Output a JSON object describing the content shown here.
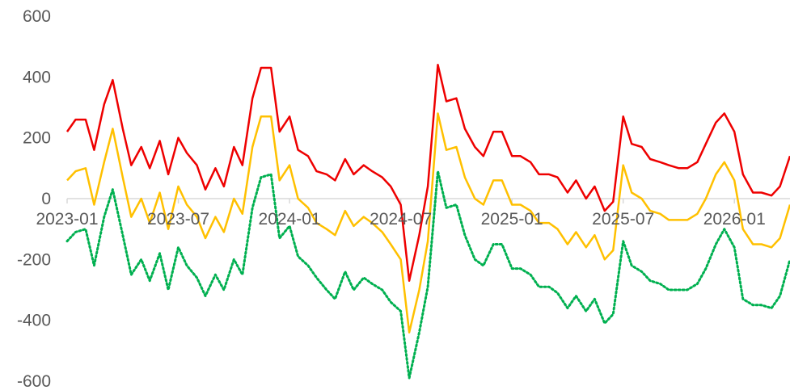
{
  "chart_data": {
    "type": "line",
    "title": "",
    "xlabel": "",
    "ylabel": "",
    "x_range": [
      "2023-01",
      "2026-04"
    ],
    "ylim": [
      -600,
      600
    ],
    "y_ticks": [
      {
        "value": 600,
        "label": "600"
      },
      {
        "value": 400,
        "label": "400"
      },
      {
        "value": 200,
        "label": "200"
      },
      {
        "value": 0,
        "label": "0"
      },
      {
        "value": -200,
        "label": "-200"
      },
      {
        "value": -400,
        "label": "-400"
      },
      {
        "value": -600,
        "label": "-600"
      }
    ],
    "x_ticks": [
      {
        "value": "2023-01",
        "label": "2023-01"
      },
      {
        "value": "2023-07",
        "label": "2023-07"
      },
      {
        "value": "2024-01",
        "label": "2024-01"
      },
      {
        "value": "2024-07",
        "label": "2024-07"
      },
      {
        "value": "2025-01",
        "label": "2025-01"
      },
      {
        "value": "2025-07",
        "label": "2025-07"
      },
      {
        "value": "2026-01",
        "label": "2026-01"
      }
    ],
    "grid": false,
    "legend": "none",
    "series": [
      {
        "color": "#ee0000",
        "style": "solid",
        "x": [
          "2023-01",
          "2023-01-15",
          "2023-02",
          "2023-02-15",
          "2023-03",
          "2023-03-15",
          "2023-04",
          "2023-04-15",
          "2023-05",
          "2023-05-15",
          "2023-06",
          "2023-06-15",
          "2023-07",
          "2023-07-15",
          "2023-08",
          "2023-08-15",
          "2023-09",
          "2023-09-15",
          "2023-10",
          "2023-10-15",
          "2023-11",
          "2023-11-15",
          "2023-12",
          "2023-12-15",
          "2024-01",
          "2024-01-15",
          "2024-02",
          "2024-02-15",
          "2024-03",
          "2024-03-15",
          "2024-04",
          "2024-04-15",
          "2024-05",
          "2024-05-15",
          "2024-06",
          "2024-06-15",
          "2024-07",
          "2024-07-15",
          "2024-08",
          "2024-08-15",
          "2024-09",
          "2024-09-15",
          "2024-10",
          "2024-10-15",
          "2024-11",
          "2024-11-15",
          "2024-12",
          "2024-12-15",
          "2025-01",
          "2025-01-15",
          "2025-02",
          "2025-02-15",
          "2025-03",
          "2025-03-15",
          "2025-04",
          "2025-04-15",
          "2025-05",
          "2025-05-15",
          "2025-06",
          "2025-06-15",
          "2025-07",
          "2025-07-15",
          "2025-08",
          "2025-08-15",
          "2025-09",
          "2025-09-15",
          "2025-10",
          "2025-10-15",
          "2025-11",
          "2025-11-15",
          "2025-12",
          "2025-12-15",
          "2026-01",
          "2026-01-15",
          "2026-02",
          "2026-02-15",
          "2026-03",
          "2026-03-15",
          "2026-04"
        ],
        "values": [
          220,
          260,
          260,
          160,
          310,
          390,
          230,
          110,
          170,
          100,
          190,
          80,
          200,
          150,
          110,
          30,
          100,
          40,
          170,
          110,
          330,
          430,
          430,
          220,
          270,
          160,
          140,
          90,
          80,
          60,
          130,
          80,
          110,
          90,
          70,
          40,
          -20,
          -270,
          -120,
          40,
          440,
          320,
          330,
          230,
          170,
          140,
          220,
          220,
          140,
          140,
          120,
          80,
          80,
          70,
          20,
          60,
          0,
          40,
          -40,
          -10,
          270,
          180,
          170,
          130,
          120,
          110,
          100,
          100,
          120,
          180,
          250,
          280,
          220,
          80,
          20,
          20,
          10,
          40,
          140
        ]
      },
      {
        "color": "#ffc000",
        "style": "solid",
        "x": [
          "2023-01",
          "2023-01-15",
          "2023-02",
          "2023-02-15",
          "2023-03",
          "2023-03-15",
          "2023-04",
          "2023-04-15",
          "2023-05",
          "2023-05-15",
          "2023-06",
          "2023-06-15",
          "2023-07",
          "2023-07-15",
          "2023-08",
          "2023-08-15",
          "2023-09",
          "2023-09-15",
          "2023-10",
          "2023-10-15",
          "2023-11",
          "2023-11-15",
          "2023-12",
          "2023-12-15",
          "2024-01",
          "2024-01-15",
          "2024-02",
          "2024-02-15",
          "2024-03",
          "2024-03-15",
          "2024-04",
          "2024-04-15",
          "2024-05",
          "2024-05-15",
          "2024-06",
          "2024-06-15",
          "2024-07",
          "2024-07-15",
          "2024-08",
          "2024-08-15",
          "2024-09",
          "2024-09-15",
          "2024-10",
          "2024-10-15",
          "2024-11",
          "2024-11-15",
          "2024-12",
          "2024-12-15",
          "2025-01",
          "2025-01-15",
          "2025-02",
          "2025-02-15",
          "2025-03",
          "2025-03-15",
          "2025-04",
          "2025-04-15",
          "2025-05",
          "2025-05-15",
          "2025-06",
          "2025-06-15",
          "2025-07",
          "2025-07-15",
          "2025-08",
          "2025-08-15",
          "2025-09",
          "2025-09-15",
          "2025-10",
          "2025-10-15",
          "2025-11",
          "2025-11-15",
          "2025-12",
          "2025-12-15",
          "2026-01",
          "2026-01-15",
          "2026-02",
          "2026-02-15",
          "2026-03",
          "2026-03-15",
          "2026-04"
        ],
        "values": [
          60,
          90,
          100,
          -20,
          120,
          230,
          70,
          -60,
          0,
          -80,
          20,
          -100,
          40,
          -20,
          -60,
          -130,
          -60,
          -110,
          0,
          -50,
          170,
          270,
          270,
          60,
          110,
          0,
          -30,
          -80,
          -100,
          -120,
          -40,
          -90,
          -60,
          -80,
          -110,
          -150,
          -200,
          -440,
          -300,
          -140,
          280,
          160,
          170,
          70,
          0,
          -20,
          60,
          60,
          -20,
          -20,
          -40,
          -80,
          -80,
          -100,
          -150,
          -110,
          -160,
          -120,
          -200,
          -170,
          110,
          20,
          0,
          -40,
          -50,
          -70,
          -70,
          -70,
          -50,
          0,
          80,
          120,
          60,
          -100,
          -150,
          -150,
          -160,
          -130,
          -20
        ]
      },
      {
        "color": "#00b050",
        "style": "dotted",
        "x": [
          "2023-01",
          "2023-01-15",
          "2023-02",
          "2023-02-15",
          "2023-03",
          "2023-03-15",
          "2023-04",
          "2023-04-15",
          "2023-05",
          "2023-05-15",
          "2023-06",
          "2023-06-15",
          "2023-07",
          "2023-07-15",
          "2023-08",
          "2023-08-15",
          "2023-09",
          "2023-09-15",
          "2023-10",
          "2023-10-15",
          "2023-11",
          "2023-11-15",
          "2023-12",
          "2023-12-15",
          "2024-01",
          "2024-01-15",
          "2024-02",
          "2024-02-15",
          "2024-03",
          "2024-03-15",
          "2024-04",
          "2024-04-15",
          "2024-05",
          "2024-05-15",
          "2024-06",
          "2024-06-15",
          "2024-07",
          "2024-07-15",
          "2024-08",
          "2024-08-15",
          "2024-09",
          "2024-09-15",
          "2024-10",
          "2024-10-15",
          "2024-11",
          "2024-11-15",
          "2024-12",
          "2024-12-15",
          "2025-01",
          "2025-01-15",
          "2025-02",
          "2025-02-15",
          "2025-03",
          "2025-03-15",
          "2025-04",
          "2025-04-15",
          "2025-05",
          "2025-05-15",
          "2025-06",
          "2025-06-15",
          "2025-07",
          "2025-07-15",
          "2025-08",
          "2025-08-15",
          "2025-09",
          "2025-09-15",
          "2025-10",
          "2025-10-15",
          "2025-11",
          "2025-11-15",
          "2025-12",
          "2025-12-15",
          "2026-01",
          "2026-01-15",
          "2026-02",
          "2026-02-15",
          "2026-03",
          "2026-03-15",
          "2026-04"
        ],
        "values": [
          -140,
          -110,
          -100,
          -220,
          -60,
          30,
          -120,
          -250,
          -200,
          -270,
          -180,
          -300,
          -160,
          -220,
          -260,
          -320,
          -250,
          -300,
          -200,
          -250,
          -30,
          70,
          80,
          -130,
          -90,
          -190,
          -220,
          -260,
          -300,
          -330,
          -240,
          -300,
          -260,
          -280,
          -300,
          -340,
          -370,
          -590,
          -440,
          -290,
          90,
          -30,
          -20,
          -120,
          -200,
          -220,
          -150,
          -150,
          -230,
          -230,
          -250,
          -290,
          -290,
          -310,
          -360,
          -320,
          -370,
          -330,
          -410,
          -380,
          -140,
          -220,
          -240,
          -270,
          -280,
          -300,
          -300,
          -300,
          -280,
          -230,
          -150,
          -100,
          -160,
          -330,
          -350,
          -350,
          -360,
          -320,
          -200
        ]
      }
    ]
  }
}
